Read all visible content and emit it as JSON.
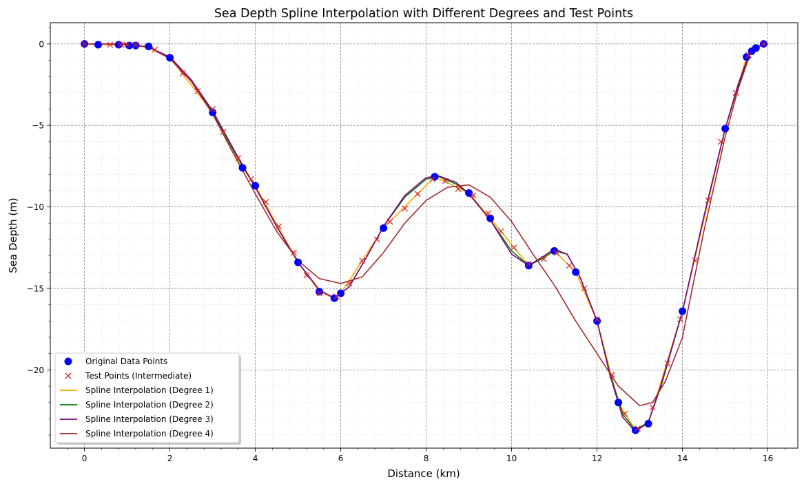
{
  "chart_data": {
    "type": "line",
    "title": "Sea Depth Spline Interpolation with Different Degrees and Test Points",
    "xlabel": "Distance (km)",
    "ylabel": "Sea Depth (m)",
    "xlim": [
      -0.8,
      16.7
    ],
    "ylim": [
      -24.8,
      1.3
    ],
    "xticks": [
      0,
      2,
      4,
      6,
      8,
      10,
      12,
      14,
      16
    ],
    "yticks": [
      0,
      -5,
      -10,
      -15,
      -20
    ],
    "ytick_labels": [
      "0",
      "−5",
      "−10",
      "−15",
      "−20"
    ],
    "grid": true,
    "legend_position": "lower-left",
    "original_points": {
      "name": "Original Data Points",
      "color": "#0000ff",
      "x": [
        0,
        0.32,
        0.8,
        1.05,
        1.2,
        1.5,
        2.0,
        3.0,
        3.7,
        4.0,
        5.0,
        5.5,
        5.85,
        6.0,
        7.0,
        8.2,
        9.0,
        9.5,
        10.4,
        11.0,
        11.5,
        12.0,
        12.5,
        12.9,
        13.2,
        14.0,
        15.0,
        15.5,
        15.62,
        15.72,
        15.9
      ],
      "y": [
        0,
        -0.05,
        -0.05,
        -0.1,
        -0.1,
        -0.15,
        -0.85,
        -4.2,
        -7.6,
        -8.7,
        -13.4,
        -15.2,
        -15.6,
        -15.3,
        -11.3,
        -8.15,
        -9.15,
        -10.7,
        -13.6,
        -12.7,
        -14.0,
        -17.0,
        -22.0,
        -23.7,
        -23.3,
        -16.4,
        -5.2,
        -0.8,
        -0.45,
        -0.25,
        0
      ]
    },
    "test_points": {
      "name": "Test Points (Intermediate)",
      "color": "#d62728",
      "x": [
        0,
        0.6,
        0.85,
        1.0,
        1.2,
        1.65,
        2.3,
        2.65,
        3.0,
        3.25,
        3.6,
        3.9,
        4.25,
        4.55,
        4.9,
        5.2,
        5.5,
        5.9,
        6.2,
        6.5,
        6.85,
        7.15,
        7.5,
        7.8,
        8.15,
        8.45,
        8.75,
        9.1,
        9.45,
        9.75,
        10.05,
        10.4,
        10.75,
        11.05,
        11.35,
        11.7,
        12.0,
        12.35,
        12.65,
        12.95,
        13.3,
        13.65,
        13.95,
        14.3,
        14.6,
        14.9,
        15.25,
        15.55,
        15.9
      ],
      "y": [
        0,
        -0.05,
        -0.05,
        -0.05,
        -0.05,
        -0.35,
        -1.8,
        -2.9,
        -4.0,
        -5.4,
        -7.0,
        -8.3,
        -9.7,
        -11.2,
        -12.8,
        -14.2,
        -15.3,
        -15.5,
        -14.7,
        -13.3,
        -12.0,
        -10.9,
        -10.1,
        -9.2,
        -8.3,
        -8.4,
        -8.9,
        -9.3,
        -10.4,
        -11.5,
        -12.5,
        -13.5,
        -13.2,
        -12.8,
        -13.6,
        -15.0,
        -16.9,
        -20.3,
        -22.7,
        -23.6,
        -22.3,
        -19.6,
        -16.9,
        -13.3,
        -9.6,
        -6.0,
        -3.0,
        -0.7,
        0
      ]
    },
    "series": [
      {
        "name": "Spline Interpolation (Degree 1)",
        "color": "#ffa500",
        "x": [
          0,
          0.32,
          0.8,
          1.05,
          1.2,
          1.5,
          2.0,
          3.0,
          3.7,
          4.0,
          5.0,
          5.5,
          5.85,
          6.0,
          7.0,
          8.2,
          9.0,
          9.5,
          10.4,
          11.0,
          11.5,
          12.0,
          12.5,
          12.9,
          13.2,
          14.0,
          15.0,
          15.5,
          15.62,
          15.72,
          15.9
        ],
        "y": [
          0,
          -0.05,
          -0.05,
          -0.1,
          -0.1,
          -0.15,
          -0.85,
          -4.2,
          -7.6,
          -8.7,
          -13.4,
          -15.2,
          -15.6,
          -15.3,
          -11.3,
          -8.15,
          -9.15,
          -10.7,
          -13.6,
          -12.7,
          -14.0,
          -17.0,
          -22.0,
          -23.7,
          -23.3,
          -16.4,
          -5.2,
          -0.8,
          -0.45,
          -0.25,
          0
        ]
      },
      {
        "name": "Spline Interpolation (Degree 2)",
        "color": "#008000",
        "x": [
          0,
          0.5,
          1.0,
          1.5,
          2.0,
          2.5,
          3.0,
          3.5,
          4.0,
          4.5,
          5.0,
          5.5,
          5.85,
          6.2,
          6.6,
          7.0,
          7.5,
          8.0,
          8.3,
          8.7,
          9.0,
          9.5,
          10.0,
          10.4,
          10.7,
          11.0,
          11.3,
          11.6,
          12.0,
          12.3,
          12.6,
          12.9,
          13.2,
          13.5,
          14.0,
          14.5,
          15.0,
          15.3,
          15.6,
          15.9
        ],
        "y": [
          0,
          0,
          -0.05,
          -0.2,
          -0.9,
          -2.3,
          -4.2,
          -6.6,
          -8.8,
          -11.2,
          -13.4,
          -15.1,
          -15.6,
          -14.9,
          -13.1,
          -11.2,
          -9.4,
          -8.3,
          -8.15,
          -8.6,
          -9.2,
          -10.8,
          -12.7,
          -13.6,
          -13.2,
          -12.7,
          -12.9,
          -14.3,
          -17.0,
          -20.2,
          -22.7,
          -23.7,
          -23.2,
          -21.0,
          -16.4,
          -10.6,
          -5.2,
          -2.6,
          -0.4,
          0
        ]
      },
      {
        "name": "Spline Interpolation (Degree 3)",
        "color": "#800080",
        "x": [
          0,
          0.5,
          1.0,
          1.5,
          2.0,
          2.5,
          3.0,
          3.5,
          4.0,
          4.5,
          5.0,
          5.5,
          5.85,
          6.2,
          6.6,
          7.0,
          7.5,
          8.0,
          8.3,
          8.7,
          9.0,
          9.5,
          10.0,
          10.4,
          10.7,
          11.0,
          11.3,
          11.6,
          12.0,
          12.3,
          12.6,
          12.9,
          13.2,
          13.5,
          14.0,
          14.5,
          15.0,
          15.3,
          15.6,
          15.9
        ],
        "y": [
          0,
          0,
          -0.05,
          -0.2,
          -0.8,
          -2.2,
          -4.1,
          -6.5,
          -8.8,
          -11.2,
          -13.4,
          -15.1,
          -15.6,
          -14.9,
          -13.1,
          -11.2,
          -9.3,
          -8.2,
          -8.1,
          -8.5,
          -9.2,
          -10.8,
          -12.9,
          -13.6,
          -13.1,
          -12.6,
          -12.9,
          -14.3,
          -17.0,
          -20.3,
          -22.9,
          -23.8,
          -23.2,
          -20.9,
          -16.4,
          -10.6,
          -5.2,
          -2.5,
          -0.35,
          0
        ]
      },
      {
        "name": "Spline Interpolation (Degree 4)",
        "color": "#a52a2a",
        "x": [
          0,
          0.5,
          1.0,
          1.5,
          2.0,
          2.5,
          3.0,
          3.5,
          4.0,
          4.5,
          5.0,
          5.5,
          6.0,
          6.5,
          7.0,
          7.5,
          8.0,
          8.5,
          9.0,
          9.5,
          10.0,
          10.5,
          11.0,
          11.5,
          12.0,
          12.5,
          13.0,
          13.3,
          13.6,
          14.0,
          14.5,
          15.0,
          15.3,
          15.6,
          15.9
        ],
        "y": [
          0,
          0,
          0,
          -0.2,
          -0.9,
          -2.3,
          -4.3,
          -6.8,
          -9.2,
          -11.5,
          -13.3,
          -14.4,
          -14.7,
          -14.3,
          -12.8,
          -11.0,
          -9.6,
          -8.8,
          -8.65,
          -9.4,
          -10.9,
          -12.9,
          -14.8,
          -17.0,
          -19.0,
          -21.0,
          -22.2,
          -22.0,
          -20.7,
          -18.0,
          -11.5,
          -5.7,
          -2.8,
          -0.5,
          0
        ]
      }
    ]
  }
}
